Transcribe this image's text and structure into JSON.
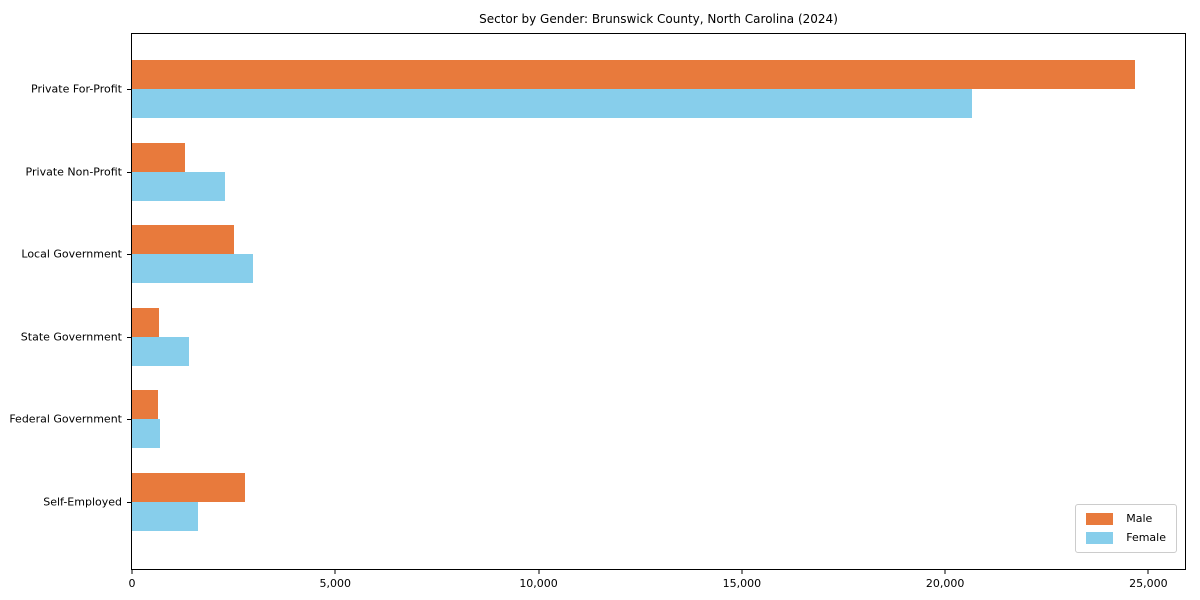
{
  "chart_data": {
    "type": "bar",
    "orientation": "horizontal",
    "title": "Sector by Gender: Brunswick County, North Carolina (2024)",
    "categories": [
      "Private For-Profit",
      "Private Non-Profit",
      "Local Government",
      "State Government",
      "Federal Government",
      "Self-Employed"
    ],
    "series": [
      {
        "name": "Male",
        "color": "#E87A3C",
        "values": [
          24670,
          1300,
          2500,
          655,
          645,
          2780
        ]
      },
      {
        "name": "Female",
        "color": "#87CEEB",
        "values": [
          20660,
          2290,
          2980,
          1410,
          685,
          1630
        ]
      }
    ],
    "xlabel": "",
    "ylabel": "",
    "xlim": [
      0,
      25900
    ],
    "xticks": {
      "values": [
        0,
        5000,
        10000,
        15000,
        20000,
        25000
      ],
      "labels": [
        "0",
        "5,000",
        "10,000",
        "15,000",
        "20,000",
        "25,000"
      ]
    },
    "grid": false,
    "legend_position": "lower right",
    "frame": true,
    "background_color": "#ffffff",
    "spine_color": "#000000"
  }
}
